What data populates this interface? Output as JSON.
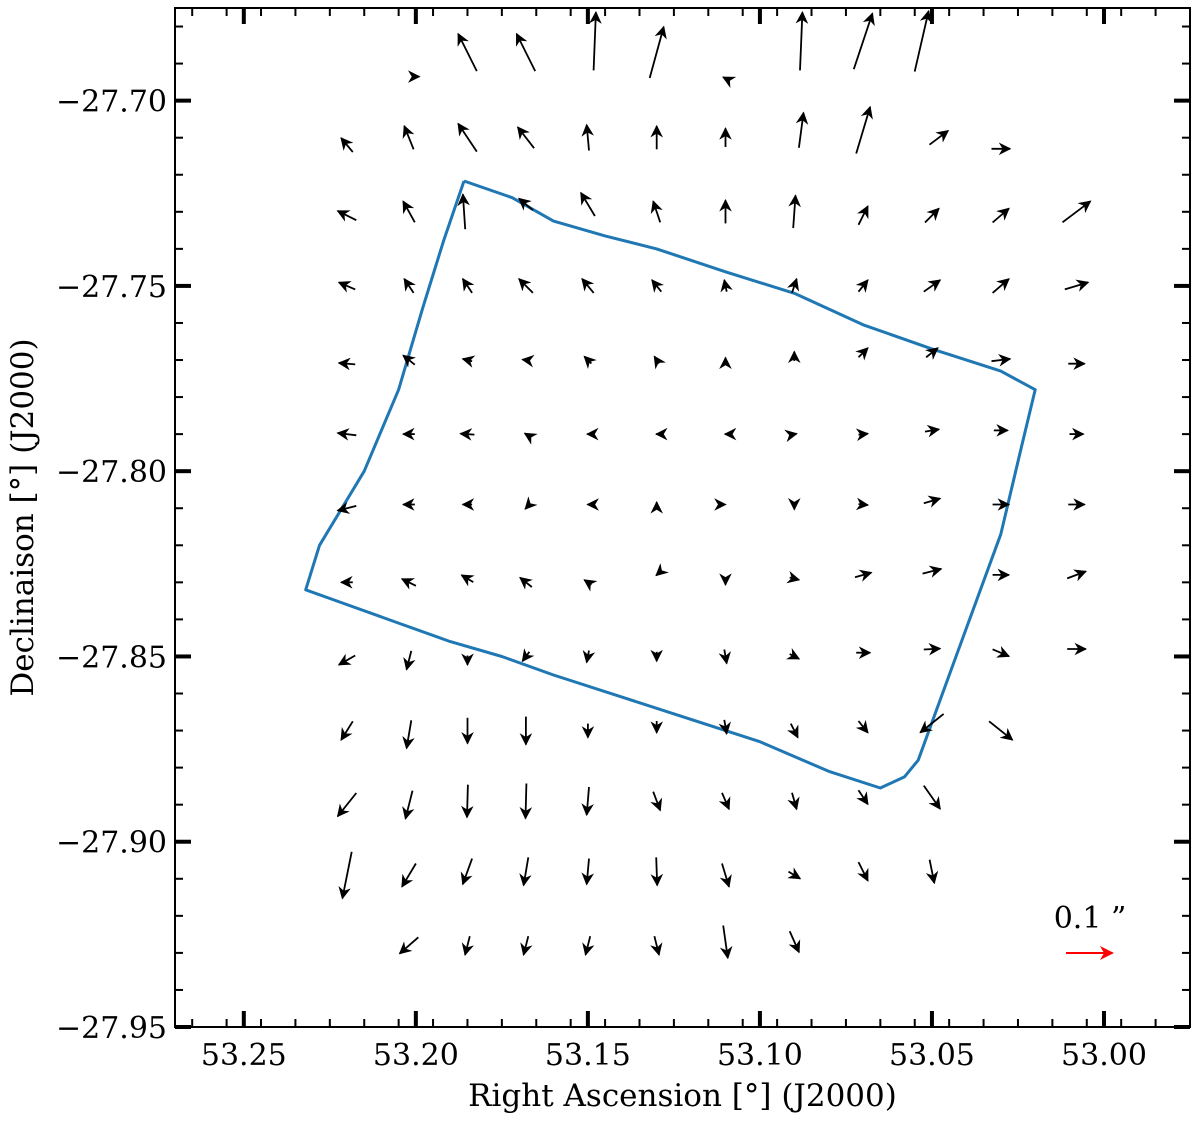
{
  "chart_data": {
    "type": "quiver",
    "xlabel": "Right Ascension [°] (J2000)",
    "ylabel": "Declinaison [°] (J2000)",
    "xlim": [
      53.27,
      52.975
    ],
    "ylim": [
      -27.95,
      -27.675
    ],
    "x_ticks": [
      53.25,
      53.2,
      53.15,
      53.1,
      53.05,
      53.0
    ],
    "x_tick_labels": [
      "53.25",
      "53.20",
      "53.15",
      "53.10",
      "53.05",
      "53.00"
    ],
    "y_ticks": [
      -27.7,
      -27.75,
      -27.8,
      -27.85,
      -27.9,
      -27.95
    ],
    "y_tick_labels": [
      "−27.70",
      "−27.75",
      "−27.80",
      "−27.85",
      "−27.90",
      "−27.95"
    ],
    "grid": false,
    "colors": {
      "vectors": "#000000",
      "footprint": "#1f77b4",
      "reference": "#ff0000"
    },
    "reference_arrow": {
      "label": "0.1 ”",
      "length_arcsec": 0.1
    },
    "vector_scale_note": "vectors drawn with dRA, dDec in arcsec",
    "vectors": [
      {
        "ra": 53.2,
        "dec": -27.6935,
        "dra": -0.015,
        "ddec": 0.0
      },
      {
        "ra": 53.185,
        "dec": -27.687,
        "dra": 0.04,
        "ddec": 0.08
      },
      {
        "ra": 53.168,
        "dec": -27.687,
        "dra": 0.04,
        "ddec": 0.08
      },
      {
        "ra": 53.148,
        "dec": -27.684,
        "dra": -0.005,
        "ddec": 0.125
      },
      {
        "ra": 53.13,
        "dec": -27.687,
        "dra": -0.03,
        "ddec": 0.11
      },
      {
        "ra": 53.11,
        "dec": -27.694,
        "dra": 0.01,
        "ddec": 0.005
      },
      {
        "ra": 53.088,
        "dec": -27.684,
        "dra": -0.005,
        "ddec": 0.125
      },
      {
        "ra": 53.07,
        "dec": -27.684,
        "dra": -0.04,
        "ddec": 0.12
      },
      {
        "ra": 53.053,
        "dec": -27.684,
        "dra": -0.03,
        "ddec": 0.13
      },
      {
        "ra": 53.22,
        "dec": -27.712,
        "dra": 0.025,
        "ddec": 0.03
      },
      {
        "ra": 53.202,
        "dec": -27.71,
        "dra": 0.02,
        "ddec": 0.05
      },
      {
        "ra": 53.185,
        "dec": -27.71,
        "dra": 0.04,
        "ddec": 0.06
      },
      {
        "ra": 53.168,
        "dec": -27.71,
        "dra": 0.035,
        "ddec": 0.045
      },
      {
        "ra": 53.15,
        "dec": -27.71,
        "dra": 0.005,
        "ddec": 0.055
      },
      {
        "ra": 53.13,
        "dec": -27.71,
        "dra": 0.0,
        "ddec": 0.05
      },
      {
        "ra": 53.11,
        "dec": -27.71,
        "dra": 0.0,
        "ddec": 0.04
      },
      {
        "ra": 53.088,
        "dec": -27.708,
        "dra": -0.01,
        "ddec": 0.075
      },
      {
        "ra": 53.07,
        "dec": -27.708,
        "dra": -0.03,
        "ddec": 0.1
      },
      {
        "ra": 53.048,
        "dec": -27.71,
        "dra": -0.04,
        "ddec": 0.03
      },
      {
        "ra": 53.03,
        "dec": -27.713,
        "dra": -0.04,
        "ddec": 0.0
      },
      {
        "ra": 53.22,
        "dec": -27.731,
        "dra": 0.04,
        "ddec": 0.02
      },
      {
        "ra": 53.202,
        "dec": -27.73,
        "dra": 0.025,
        "ddec": 0.045
      },
      {
        "ra": 53.186,
        "dec": -27.73,
        "dra": 0.005,
        "ddec": 0.075
      },
      {
        "ra": 53.168,
        "dec": -27.728,
        "dra": 0.03,
        "ddec": 0.025
      },
      {
        "ra": 53.15,
        "dec": -27.728,
        "dra": 0.03,
        "ddec": 0.05
      },
      {
        "ra": 53.13,
        "dec": -27.73,
        "dra": 0.015,
        "ddec": 0.045
      },
      {
        "ra": 53.11,
        "dec": -27.73,
        "dra": 0.0,
        "ddec": 0.05
      },
      {
        "ra": 53.09,
        "dec": -27.73,
        "dra": -0.005,
        "ddec": 0.07
      },
      {
        "ra": 53.07,
        "dec": -27.731,
        "dra": -0.02,
        "ddec": 0.04
      },
      {
        "ra": 53.05,
        "dec": -27.731,
        "dra": -0.03,
        "ddec": 0.03
      },
      {
        "ra": 53.03,
        "dec": -27.731,
        "dra": -0.035,
        "ddec": 0.03
      },
      {
        "ra": 53.008,
        "dec": -27.73,
        "dra": -0.06,
        "ddec": 0.045
      },
      {
        "ra": 53.22,
        "dec": -27.75,
        "dra": 0.035,
        "ddec": 0.015
      },
      {
        "ra": 53.202,
        "dec": -27.75,
        "dra": 0.02,
        "ddec": 0.03
      },
      {
        "ra": 53.185,
        "dec": -27.75,
        "dra": 0.02,
        "ddec": 0.03
      },
      {
        "ra": 53.168,
        "dec": -27.75,
        "dra": 0.03,
        "ddec": 0.03
      },
      {
        "ra": 53.15,
        "dec": -27.75,
        "dra": 0.025,
        "ddec": 0.03
      },
      {
        "ra": 53.13,
        "dec": -27.75,
        "dra": 0.02,
        "ddec": 0.025
      },
      {
        "ra": 53.11,
        "dec": -27.75,
        "dra": 0.005,
        "ddec": 0.025
      },
      {
        "ra": 53.09,
        "dec": -27.75,
        "dra": -0.01,
        "ddec": 0.03
      },
      {
        "ra": 53.07,
        "dec": -27.75,
        "dra": -0.02,
        "ddec": 0.025
      },
      {
        "ra": 53.05,
        "dec": -27.75,
        "dra": -0.035,
        "ddec": 0.025
      },
      {
        "ra": 53.03,
        "dec": -27.75,
        "dra": -0.035,
        "ddec": 0.03
      },
      {
        "ra": 53.008,
        "dec": -27.75,
        "dra": -0.05,
        "ddec": 0.015
      },
      {
        "ra": 53.22,
        "dec": -27.771,
        "dra": 0.035,
        "ddec": 0.003
      },
      {
        "ra": 53.202,
        "dec": -27.77,
        "dra": 0.025,
        "ddec": 0.02
      },
      {
        "ra": 53.185,
        "dec": -27.77,
        "dra": 0.02,
        "ddec": 0.005
      },
      {
        "ra": 53.168,
        "dec": -27.77,
        "dra": 0.015,
        "ddec": 0.002
      },
      {
        "ra": 53.15,
        "dec": -27.77,
        "dra": 0.015,
        "ddec": 0.015
      },
      {
        "ra": 53.13,
        "dec": -27.77,
        "dra": 0.01,
        "ddec": 0.015
      },
      {
        "ra": 53.11,
        "dec": -27.77,
        "dra": 0.0,
        "ddec": 0.01
      },
      {
        "ra": 53.09,
        "dec": -27.769,
        "dra": 0.0,
        "ddec": 0.02
      },
      {
        "ra": 53.07,
        "dec": -27.768,
        "dra": -0.02,
        "ddec": 0.02
      },
      {
        "ra": 53.05,
        "dec": -27.768,
        "dra": -0.025,
        "ddec": 0.02
      },
      {
        "ra": 53.03,
        "dec": -27.77,
        "dra": -0.04,
        "ddec": 0.005
      },
      {
        "ra": 53.008,
        "dec": -27.771,
        "dra": -0.035,
        "ddec": 0.0
      },
      {
        "ra": 53.22,
        "dec": -27.79,
        "dra": 0.04,
        "ddec": 0.005
      },
      {
        "ra": 53.202,
        "dec": -27.79,
        "dra": 0.025,
        "ddec": 0.0
      },
      {
        "ra": 53.185,
        "dec": -27.79,
        "dra": 0.03,
        "ddec": 0.002
      },
      {
        "ra": 53.168,
        "dec": -27.79,
        "dra": 0.005,
        "ddec": 0.003
      },
      {
        "ra": 53.15,
        "dec": -27.79,
        "dra": 0.003,
        "ddec": 0.0
      },
      {
        "ra": 53.13,
        "dec": -27.79,
        "dra": 0.002,
        "ddec": 0.0
      },
      {
        "ra": 53.11,
        "dec": -27.79,
        "dra": 0.002,
        "ddec": 0.0
      },
      {
        "ra": 53.09,
        "dec": -27.79,
        "dra": -0.01,
        "ddec": 0.002
      },
      {
        "ra": 53.07,
        "dec": -27.79,
        "dra": -0.02,
        "ddec": 0.002
      },
      {
        "ra": 53.05,
        "dec": -27.789,
        "dra": -0.03,
        "ddec": 0.005
      },
      {
        "ra": 53.03,
        "dec": -27.789,
        "dra": -0.03,
        "ddec": 0.0
      },
      {
        "ra": 53.008,
        "dec": -27.79,
        "dra": -0.03,
        "ddec": 0.0
      },
      {
        "ra": 53.22,
        "dec": -27.81,
        "dra": 0.04,
        "ddec": -0.01
      },
      {
        "ra": 53.202,
        "dec": -27.809,
        "dra": 0.025,
        "ddec": 0.0
      },
      {
        "ra": 53.185,
        "dec": -27.809,
        "dra": 0.02,
        "ddec": 0.0
      },
      {
        "ra": 53.168,
        "dec": -27.81,
        "dra": 0.003,
        "ddec": -0.003
      },
      {
        "ra": 53.15,
        "dec": -27.809,
        "dra": 0.001,
        "ddec": 0.0
      },
      {
        "ra": 53.13,
        "dec": -27.809,
        "dra": 0.0,
        "ddec": 0.01
      },
      {
        "ra": 53.11,
        "dec": -27.809,
        "dra": 0.0,
        "ddec": 0.0
      },
      {
        "ra": 53.09,
        "dec": -27.81,
        "dra": 0.0,
        "ddec": -0.005
      },
      {
        "ra": 53.07,
        "dec": -27.809,
        "dra": -0.02,
        "ddec": -0.002
      },
      {
        "ra": 53.05,
        "dec": -27.808,
        "dra": -0.035,
        "ddec": 0.01
      },
      {
        "ra": 53.03,
        "dec": -27.809,
        "dra": -0.035,
        "ddec": 0.0
      },
      {
        "ra": 53.008,
        "dec": -27.809,
        "dra": -0.035,
        "ddec": 0.0
      },
      {
        "ra": 53.22,
        "dec": -27.83,
        "dra": 0.025,
        "ddec": 0.0
      },
      {
        "ra": 53.202,
        "dec": -27.83,
        "dra": 0.03,
        "ddec": 0.015
      },
      {
        "ra": 53.185,
        "dec": -27.829,
        "dra": 0.025,
        "ddec": 0.015
      },
      {
        "ra": 53.168,
        "dec": -27.83,
        "dra": 0.025,
        "ddec": 0.02
      },
      {
        "ra": 53.15,
        "dec": -27.83,
        "dra": 0.015,
        "ddec": 0.01
      },
      {
        "ra": 53.13,
        "dec": -27.828,
        "dra": 0.002,
        "ddec": -0.002
      },
      {
        "ra": 53.11,
        "dec": -27.83,
        "dra": 0.0,
        "ddec": -0.01
      },
      {
        "ra": 53.09,
        "dec": -27.829,
        "dra": -0.02,
        "ddec": -0.005
      },
      {
        "ra": 53.07,
        "dec": -27.828,
        "dra": -0.035,
        "ddec": 0.01
      },
      {
        "ra": 53.05,
        "dec": -27.827,
        "dra": -0.04,
        "ddec": 0.01
      },
      {
        "ra": 53.03,
        "dec": -27.828,
        "dra": -0.035,
        "ddec": 0.0
      },
      {
        "ra": 53.008,
        "dec": -27.828,
        "dra": -0.04,
        "ddec": 0.015
      },
      {
        "ra": 53.22,
        "dec": -27.851,
        "dra": 0.035,
        "ddec": -0.02
      },
      {
        "ra": 53.202,
        "dec": -27.851,
        "dra": 0.01,
        "ddec": -0.04
      },
      {
        "ra": 53.185,
        "dec": -27.851,
        "dra": 0.0,
        "ddec": -0.02
      },
      {
        "ra": 53.168,
        "dec": -27.85,
        "dra": 0.015,
        "ddec": -0.02
      },
      {
        "ra": 53.15,
        "dec": -27.85,
        "dra": 0.005,
        "ddec": -0.025
      },
      {
        "ra": 53.13,
        "dec": -27.85,
        "dra": 0.0,
        "ddec": -0.02
      },
      {
        "ra": 53.11,
        "dec": -27.85,
        "dra": -0.005,
        "ddec": -0.03
      },
      {
        "ra": 53.09,
        "dec": -27.85,
        "dra": -0.02,
        "ddec": -0.01
      },
      {
        "ra": 53.07,
        "dec": -27.849,
        "dra": -0.03,
        "ddec": 0.0
      },
      {
        "ra": 53.05,
        "dec": -27.848,
        "dra": -0.035,
        "ddec": 0.002
      },
      {
        "ra": 53.03,
        "dec": -27.849,
        "dra": -0.035,
        "ddec": -0.015
      },
      {
        "ra": 53.008,
        "dec": -27.848,
        "dra": -0.04,
        "ddec": 0.0
      },
      {
        "ra": 53.22,
        "dec": -27.87,
        "dra": 0.025,
        "ddec": -0.04
      },
      {
        "ra": 53.202,
        "dec": -27.871,
        "dra": 0.01,
        "ddec": -0.06
      },
      {
        "ra": 53.185,
        "dec": -27.87,
        "dra": 0.0,
        "ddec": -0.055
      },
      {
        "ra": 53.168,
        "dec": -27.87,
        "dra": 0.0,
        "ddec": -0.06
      },
      {
        "ra": 53.15,
        "dec": -27.87,
        "dra": 0.0,
        "ddec": -0.03
      },
      {
        "ra": 53.13,
        "dec": -27.869,
        "dra": 0.0,
        "ddec": -0.025
      },
      {
        "ra": 53.11,
        "dec": -27.869,
        "dra": -0.005,
        "ddec": -0.03
      },
      {
        "ra": 53.09,
        "dec": -27.87,
        "dra": -0.015,
        "ddec": -0.03
      },
      {
        "ra": 53.07,
        "dec": -27.869,
        "dra": -0.02,
        "ddec": -0.025
      },
      {
        "ra": 53.05,
        "dec": -27.868,
        "dra": 0.05,
        "ddec": -0.04
      },
      {
        "ra": 53.03,
        "dec": -27.87,
        "dra": -0.05,
        "ddec": -0.04
      },
      {
        "ra": 53.22,
        "dec": -27.89,
        "dra": 0.04,
        "ddec": -0.05
      },
      {
        "ra": 53.202,
        "dec": -27.89,
        "dra": 0.015,
        "ddec": -0.06
      },
      {
        "ra": 53.185,
        "dec": -27.889,
        "dra": 0.002,
        "ddec": -0.07
      },
      {
        "ra": 53.168,
        "dec": -27.889,
        "dra": 0.002,
        "ddec": -0.075
      },
      {
        "ra": 53.15,
        "dec": -27.889,
        "dra": 0.005,
        "ddec": -0.06
      },
      {
        "ra": 53.13,
        "dec": -27.889,
        "dra": -0.015,
        "ddec": -0.04
      },
      {
        "ra": 53.11,
        "dec": -27.889,
        "dra": -0.015,
        "ddec": -0.035
      },
      {
        "ra": 53.09,
        "dec": -27.889,
        "dra": -0.01,
        "ddec": -0.035
      },
      {
        "ra": 53.07,
        "dec": -27.888,
        "dra": -0.02,
        "ddec": -0.03
      },
      {
        "ra": 53.05,
        "dec": -27.888,
        "dra": -0.035,
        "ddec": -0.05
      },
      {
        "ra": 53.22,
        "dec": -27.909,
        "dra": 0.02,
        "ddec": -0.1
      },
      {
        "ra": 53.202,
        "dec": -27.909,
        "dra": 0.03,
        "ddec": -0.05
      },
      {
        "ra": 53.185,
        "dec": -27.908,
        "dra": 0.02,
        "ddec": -0.055
      },
      {
        "ra": 53.168,
        "dec": -27.908,
        "dra": 0.01,
        "ddec": -0.06
      },
      {
        "ra": 53.15,
        "dec": -27.908,
        "dra": 0.005,
        "ddec": -0.055
      },
      {
        "ra": 53.13,
        "dec": -27.908,
        "dra": -0.002,
        "ddec": -0.06
      },
      {
        "ra": 53.11,
        "dec": -27.909,
        "dra": -0.015,
        "ddec": -0.05
      },
      {
        "ra": 53.09,
        "dec": -27.909,
        "dra": -0.025,
        "ddec": -0.015
      },
      {
        "ra": 53.07,
        "dec": -27.908,
        "dra": -0.02,
        "ddec": -0.04
      },
      {
        "ra": 53.05,
        "dec": -27.908,
        "dra": -0.01,
        "ddec": -0.05
      },
      {
        "ra": 53.202,
        "dec": -27.928,
        "dra": 0.04,
        "ddec": -0.035
      },
      {
        "ra": 53.185,
        "dec": -27.928,
        "dra": 0.01,
        "ddec": -0.04
      },
      {
        "ra": 53.168,
        "dec": -27.928,
        "dra": 0.01,
        "ddec": -0.04
      },
      {
        "ra": 53.15,
        "dec": -27.928,
        "dra": 0.01,
        "ddec": -0.04
      },
      {
        "ra": 53.13,
        "dec": -27.928,
        "dra": -0.01,
        "ddec": -0.04
      },
      {
        "ra": 53.11,
        "dec": -27.927,
        "dra": -0.01,
        "ddec": -0.07
      },
      {
        "ra": 53.09,
        "dec": -27.927,
        "dra": -0.02,
        "ddec": -0.045
      }
    ],
    "footprint": [
      [
        53.186,
        -27.7217
      ],
      [
        53.172,
        -27.7262
      ],
      [
        53.16,
        -27.7325
      ],
      [
        53.145,
        -27.7365
      ],
      [
        53.13,
        -27.74
      ],
      [
        53.11,
        -27.7462
      ],
      [
        53.09,
        -27.752
      ],
      [
        53.07,
        -27.7605
      ],
      [
        53.05,
        -27.767
      ],
      [
        53.03,
        -27.773
      ],
      [
        53.02,
        -27.778
      ],
      [
        53.024,
        -27.7935
      ],
      [
        53.03,
        -27.817
      ],
      [
        53.043,
        -27.85
      ],
      [
        53.054,
        -27.878
      ],
      [
        53.058,
        -27.8825
      ],
      [
        53.065,
        -27.8855
      ],
      [
        53.08,
        -27.881
      ],
      [
        53.1,
        -27.873
      ],
      [
        53.12,
        -27.867
      ],
      [
        53.14,
        -27.861
      ],
      [
        53.16,
        -27.855
      ],
      [
        53.175,
        -27.85
      ],
      [
        53.19,
        -27.846
      ],
      [
        53.205,
        -27.841
      ],
      [
        53.22,
        -27.836
      ],
      [
        53.232,
        -27.832
      ],
      [
        53.228,
        -27.82
      ],
      [
        53.215,
        -27.8
      ],
      [
        53.205,
        -27.778
      ],
      [
        53.198,
        -27.756
      ],
      [
        53.192,
        -27.738
      ],
      [
        53.186,
        -27.7217
      ]
    ]
  }
}
